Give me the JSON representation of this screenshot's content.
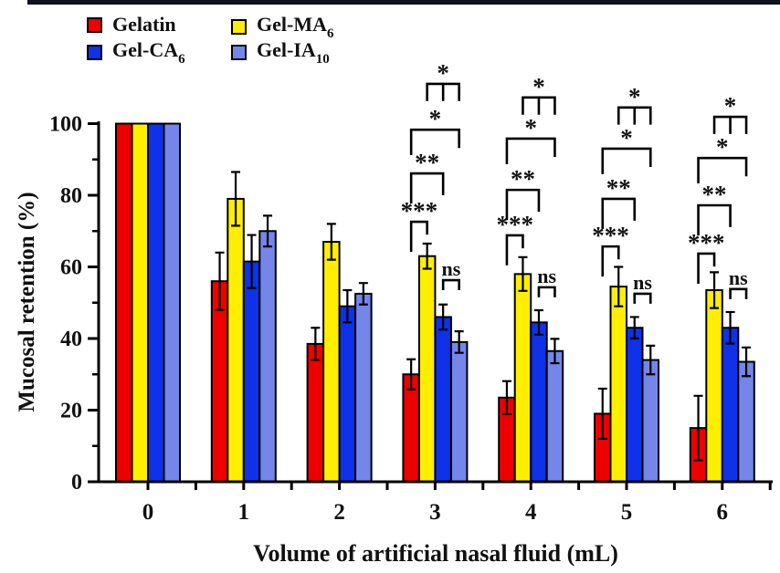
{
  "page": {
    "top_strip_color": "#10101f",
    "background": "#ffffff"
  },
  "legend": {
    "columns": [
      [
        {
          "base": "Gelatin",
          "sub": "",
          "color": "#ee0000"
        },
        {
          "base": "Gel-CA",
          "sub": "6",
          "color": "#0f31e8"
        }
      ],
      [
        {
          "base": "Gel-MA",
          "sub": "6",
          "color": "#ffee00"
        },
        {
          "base": "Gel-IA",
          "sub": "10",
          "color": "#7486ea"
        }
      ]
    ]
  },
  "chart_data": {
    "type": "bar",
    "title": "",
    "xlabel": "Volume of artificial nasal fluid (mL)",
    "ylabel": "Mucosal retention (%)",
    "categories": [
      "0",
      "1",
      "2",
      "3",
      "4",
      "5",
      "6"
    ],
    "ylim": [
      0,
      100
    ],
    "ytick_major": [
      0,
      20,
      40,
      60,
      80,
      100
    ],
    "ytick_minor": [
      10,
      30,
      50,
      70,
      90
    ],
    "grid": false,
    "legend_position": "top-left",
    "series": [
      {
        "name": "Gelatin",
        "color": "#ee0000",
        "values": [
          100,
          56,
          38.5,
          30,
          23.5,
          19,
          15
        ],
        "errors": [
          0,
          8,
          4.5,
          4.2,
          4.6,
          7,
          9
        ]
      },
      {
        "name": "Gel-MA6",
        "color": "#ffee00",
        "values": [
          100,
          79,
          67,
          63,
          58,
          54.5,
          53.5
        ],
        "errors": [
          0,
          7.5,
          5,
          3.5,
          4.7,
          5.5,
          5
        ]
      },
      {
        "name": "Gel-CA6",
        "color": "#0f31e8",
        "values": [
          100,
          61.5,
          49,
          46,
          44.5,
          43,
          43
        ],
        "errors": [
          0,
          7.4,
          4.5,
          3.5,
          3.4,
          3,
          4.4
        ]
      },
      {
        "name": "Gel-IA10",
        "color": "#7486ea",
        "values": [
          100,
          70,
          52.5,
          39,
          36.5,
          34,
          33.5
        ],
        "errors": [
          0,
          4.3,
          3,
          3,
          3.4,
          4,
          4
        ]
      }
    ],
    "significance": [
      {
        "category": "3",
        "brackets": [
          {
            "pair": [
              2,
              3
            ],
            "label": "ns",
            "at": 56.3,
            "legs": [
              2.8,
              2.8
            ]
          },
          {
            "pair": [
              0,
              1
            ],
            "label": "***",
            "at": 72.6,
            "legs": [
              8.4,
              3.6
            ]
          },
          {
            "pair": [
              0,
              2
            ],
            "label": "**",
            "at": 86.1,
            "legs": [
              8.4,
              6.1
            ]
          },
          {
            "pair": [
              0,
              3
            ],
            "label": "*",
            "at": 98.3,
            "legs": [
              7.1,
              5.1
            ]
          },
          {
            "pair": [
              1,
              3
            ],
            "label": "*",
            "at": 111.1,
            "legs": [
              4.8,
              4.8
            ],
            "mid": 2
          }
        ]
      },
      {
        "category": "4",
        "brackets": [
          {
            "pair": [
              2,
              3
            ],
            "label": "ns",
            "at": 54.3,
            "legs": [
              2.8,
              2.8
            ]
          },
          {
            "pair": [
              0,
              1
            ],
            "label": "***",
            "at": 68.8,
            "legs": [
              8.4,
              3.6
            ]
          },
          {
            "pair": [
              0,
              2
            ],
            "label": "**",
            "at": 81.5,
            "legs": [
              8.4,
              6.1
            ]
          },
          {
            "pair": [
              0,
              3
            ],
            "label": "*",
            "at": 95.8,
            "legs": [
              7.1,
              5.1
            ]
          },
          {
            "pair": [
              1,
              3
            ],
            "label": "*",
            "at": 107.3,
            "legs": [
              4.8,
              4.8
            ],
            "mid": 2
          }
        ]
      },
      {
        "category": "5",
        "brackets": [
          {
            "pair": [
              2,
              3
            ],
            "label": "ns",
            "at": 52.5,
            "legs": [
              2.8,
              2.8
            ]
          },
          {
            "pair": [
              0,
              1
            ],
            "label": "***",
            "at": 65.7,
            "legs": [
              8.4,
              3.6
            ]
          },
          {
            "pair": [
              0,
              2
            ],
            "label": "**",
            "at": 79.0,
            "legs": [
              8.4,
              6.1
            ]
          },
          {
            "pair": [
              0,
              3
            ],
            "label": "*",
            "at": 93.0,
            "legs": [
              7.1,
              5.1
            ]
          },
          {
            "pair": [
              1,
              3
            ],
            "label": "*",
            "at": 104.5,
            "legs": [
              4.8,
              4.8
            ],
            "mid": 2
          }
        ]
      },
      {
        "category": "6",
        "brackets": [
          {
            "pair": [
              2,
              3
            ],
            "label": "ns",
            "at": 53.8,
            "legs": [
              2.8,
              2.8
            ]
          },
          {
            "pair": [
              0,
              1
            ],
            "label": "***",
            "at": 63.7,
            "legs": [
              8.4,
              3.6
            ]
          },
          {
            "pair": [
              0,
              2
            ],
            "label": "**",
            "at": 77.2,
            "legs": [
              8.4,
              6.1
            ]
          },
          {
            "pair": [
              0,
              3
            ],
            "label": "*",
            "at": 90.4,
            "legs": [
              7.1,
              5.1
            ]
          },
          {
            "pair": [
              1,
              3
            ],
            "label": "*",
            "at": 101.9,
            "legs": [
              4.8,
              4.8
            ],
            "mid": 2
          }
        ]
      }
    ]
  }
}
